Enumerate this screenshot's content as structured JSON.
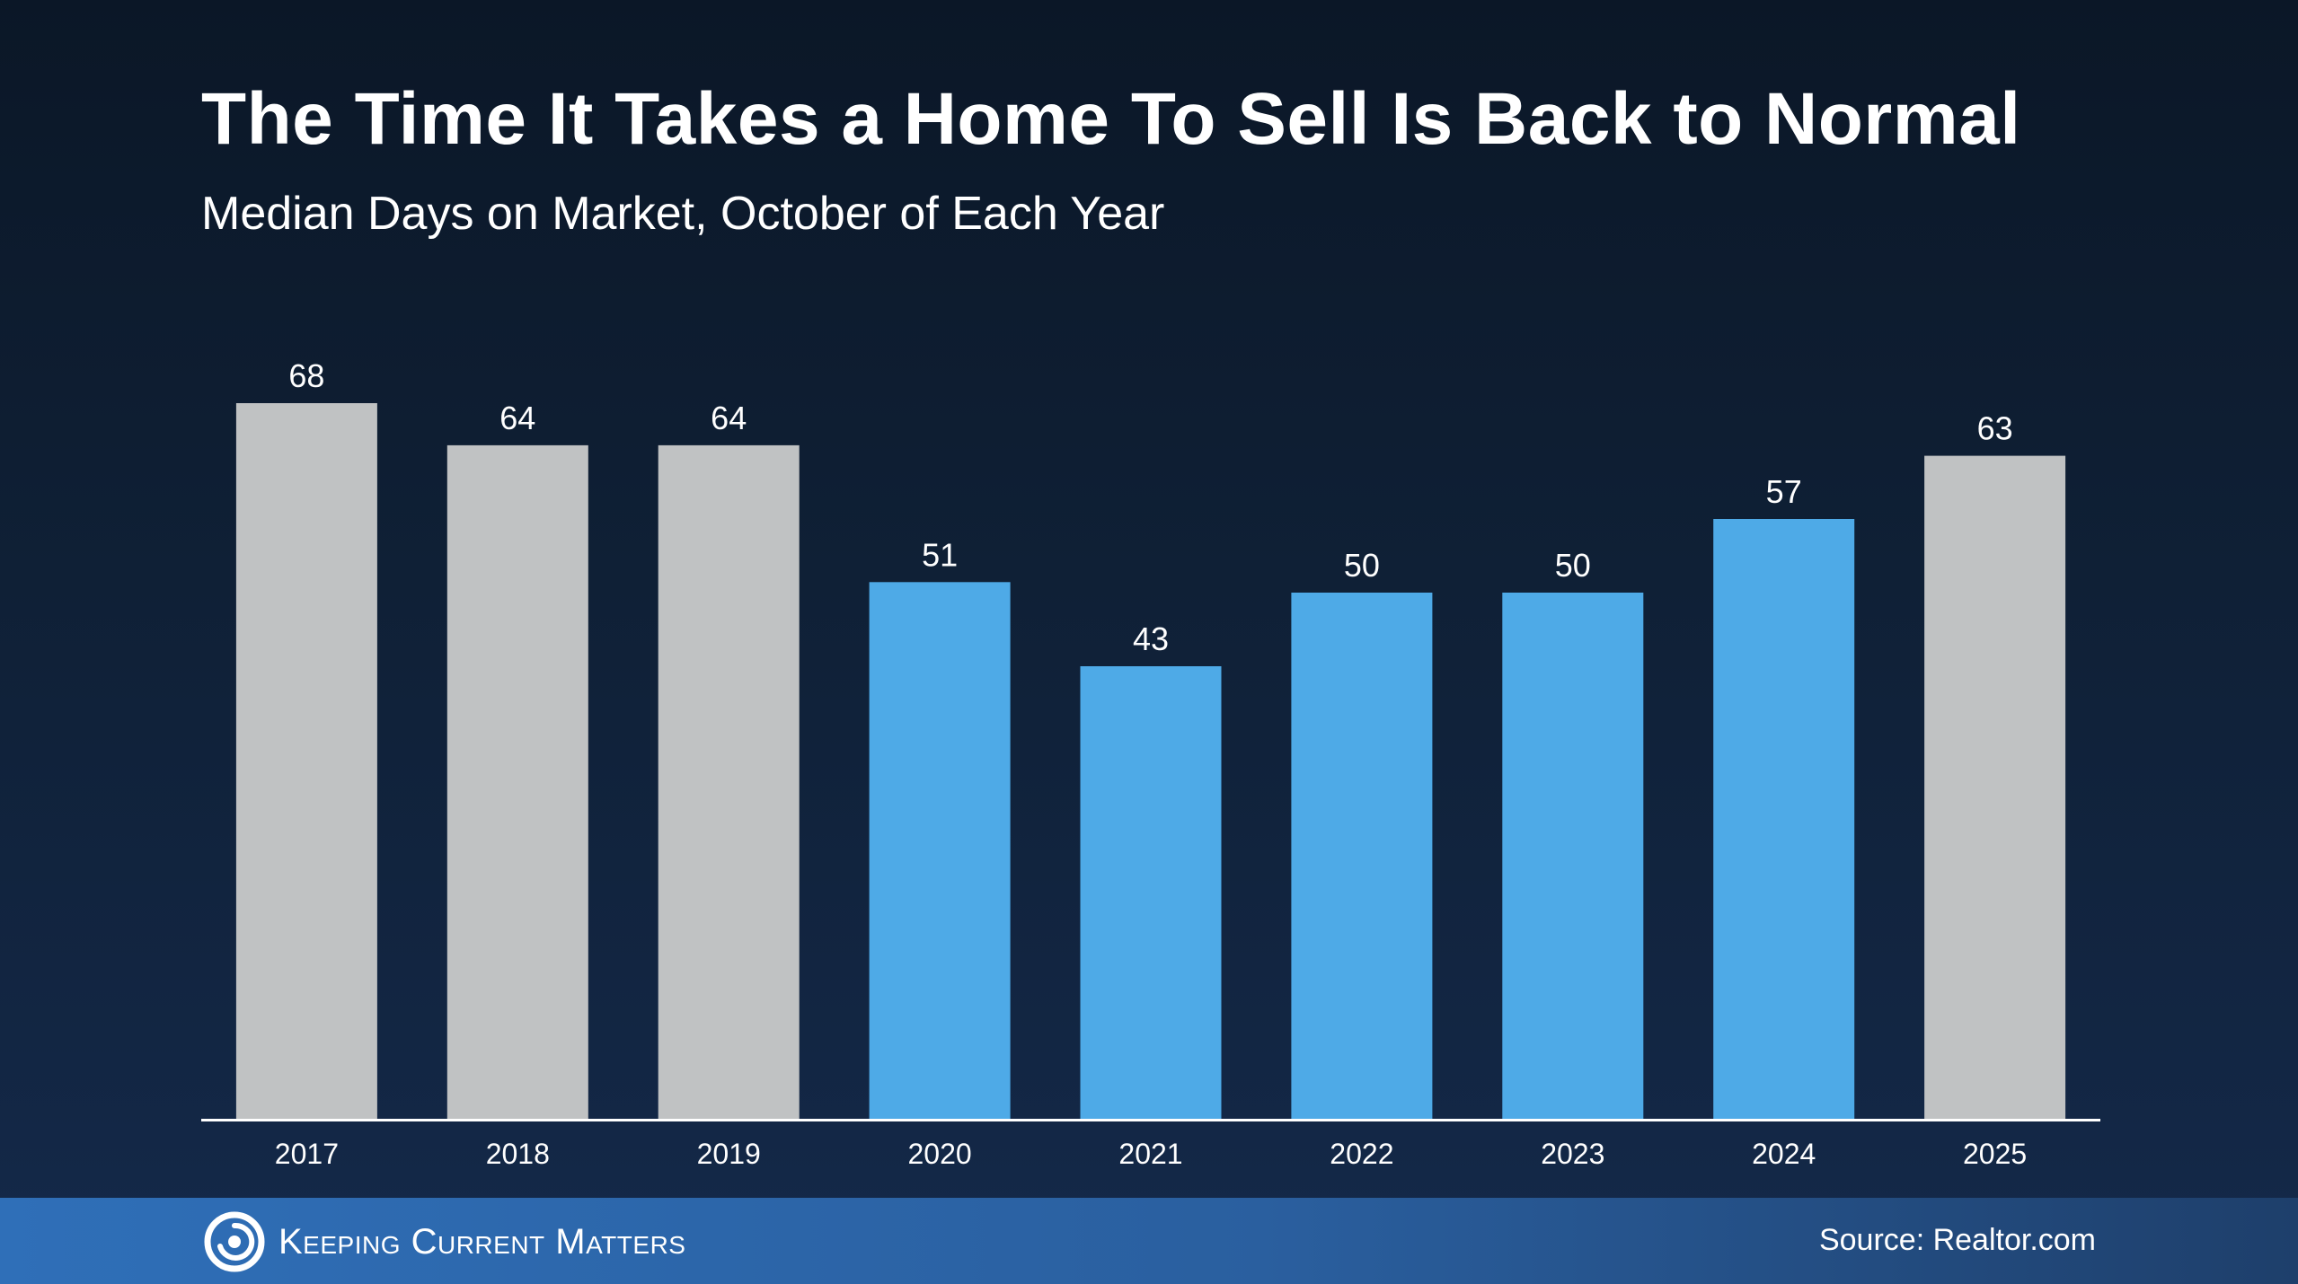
{
  "header": {
    "title": "The Time It Takes a Home To Sell Is Back to Normal",
    "subtitle": "Median Days on Market, October of Each Year"
  },
  "footer": {
    "brand": "Keeping Current Matters",
    "source": "Source: Realtor.com"
  },
  "colors": {
    "gray_bar": "#c0c2c3",
    "blue_bar": "#4eaae7",
    "axis_line": "#ffffff",
    "text": "#ffffff"
  },
  "chart_data": {
    "type": "bar",
    "title": "The Time It Takes a Home To Sell Is Back to Normal",
    "subtitle": "Median Days on Market, October of Each Year",
    "categories": [
      "2017",
      "2018",
      "2019",
      "2020",
      "2021",
      "2022",
      "2023",
      "2024",
      "2025"
    ],
    "values": [
      68,
      64,
      64,
      51,
      43,
      50,
      50,
      57,
      63
    ],
    "data_labels": [
      "68",
      "64",
      "64",
      "51",
      "43",
      "50",
      "50",
      "57",
      "63"
    ],
    "bar_colors": [
      "#c0c2c3",
      "#c0c2c3",
      "#c0c2c3",
      "#4eaae7",
      "#4eaae7",
      "#4eaae7",
      "#4eaae7",
      "#4eaae7",
      "#c0c2c3"
    ],
    "xlabel": "",
    "ylabel": "",
    "ylim": [
      0,
      68
    ],
    "grid": false,
    "legend": "none"
  }
}
